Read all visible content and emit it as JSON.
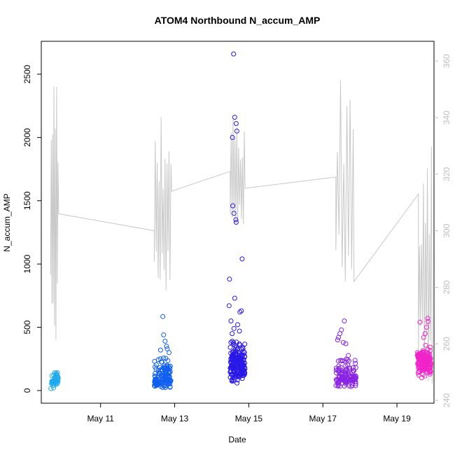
{
  "chart_data": {
    "type": "scatter",
    "title": "ATOM4 Northbound N_accum_AMP",
    "xlabel": "Date",
    "ylabel": "N_accum_AMP",
    "xlim": [
      9.4,
      20.0
    ],
    "ylim": [
      -100,
      2760
    ],
    "y2lim": [
      239,
      367
    ],
    "x_ticks": [
      {
        "value": 11,
        "label": "May 11"
      },
      {
        "value": 13,
        "label": "May 13"
      },
      {
        "value": 15,
        "label": "May 15"
      },
      {
        "value": 17,
        "label": "May 17"
      },
      {
        "value": 19,
        "label": "May 19"
      }
    ],
    "y_ticks": [
      0,
      500,
      1000,
      1500,
      2000,
      2500
    ],
    "y2_ticks": [
      240,
      260,
      280,
      300,
      320,
      340,
      360
    ],
    "colors": {
      "secondary_line": "#c8c8c8",
      "right_axis": "#bfbfbf",
      "axis": "#000000",
      "gradient": [
        "#00b4e6",
        "#0050ff",
        "#2800e6",
        "#8a1ee6",
        "#ff28c8"
      ]
    },
    "grid": false,
    "legend": "none",
    "series": [
      {
        "type": "scatter",
        "color": "#1ea9ee",
        "clusters": [
          {
            "x_range": [
              9.64,
              9.86
            ],
            "n": 40,
            "y_min": 5,
            "y_max": 150,
            "mode": 80
          }
        ],
        "outliers": [
          [
            9.76,
            140
          ],
          [
            9.82,
            120
          ]
        ]
      },
      {
        "type": "scatter",
        "color": "#1060f0",
        "clusters": [
          {
            "x_range": [
              12.45,
              12.9
            ],
            "n": 150,
            "y_min": 10,
            "y_max": 300,
            "mode": 90
          }
        ],
        "outliers": [
          [
            12.68,
            585
          ],
          [
            12.7,
            440
          ],
          [
            12.74,
            390
          ],
          [
            12.78,
            350
          ],
          [
            12.8,
            330
          ],
          [
            12.62,
            320
          ],
          [
            12.85,
            300
          ]
        ]
      },
      {
        "type": "scatter",
        "color": "#2a18e8",
        "clusters": [
          {
            "x_range": [
              14.5,
              14.9
            ],
            "n": 200,
            "y_min": 20,
            "y_max": 420,
            "mode": 200
          }
        ],
        "outliers": [
          [
            14.59,
            2660
          ],
          [
            14.62,
            2160
          ],
          [
            14.66,
            2110
          ],
          [
            14.68,
            2050
          ],
          [
            14.56,
            2000
          ],
          [
            14.57,
            1460
          ],
          [
            14.6,
            1400
          ],
          [
            14.65,
            1350
          ],
          [
            14.66,
            1330
          ],
          [
            14.82,
            1040
          ],
          [
            14.48,
            880
          ],
          [
            14.62,
            730
          ],
          [
            14.47,
            670
          ],
          [
            14.8,
            630
          ],
          [
            14.76,
            620
          ],
          [
            14.52,
            550
          ],
          [
            14.7,
            520
          ],
          [
            14.6,
            490
          ],
          [
            14.75,
            470
          ],
          [
            14.55,
            450
          ]
        ]
      },
      {
        "type": "scatter",
        "color": "#8a24e6",
        "clusters": [
          {
            "x_range": [
              17.35,
              17.9
            ],
            "n": 130,
            "y_min": 5,
            "y_max": 330,
            "mode": 100
          }
        ],
        "outliers": [
          [
            17.58,
            550
          ],
          [
            17.5,
            480
          ],
          [
            17.46,
            450
          ],
          [
            17.42,
            420
          ],
          [
            17.4,
            400
          ],
          [
            17.55,
            380
          ],
          [
            17.62,
            370
          ]
        ]
      },
      {
        "type": "scatter",
        "color": "#f024c8",
        "clusters": [
          {
            "x_range": [
              19.55,
              19.92
            ],
            "n": 150,
            "y_min": 60,
            "y_max": 370,
            "mode": 230
          }
        ],
        "outliers": [
          [
            19.83,
            570
          ],
          [
            19.84,
            545
          ],
          [
            19.62,
            540
          ],
          [
            19.8,
            500
          ],
          [
            19.76,
            450
          ],
          [
            19.72,
            420
          ]
        ]
      },
      {
        "type": "line",
        "axis": "right",
        "color": "#c8c8c8",
        "segments": [
          {
            "x_range": [
              9.65,
              9.85
            ],
            "y_min": 260,
            "y_max": 366,
            "n": 12,
            "end": 306
          },
          {
            "connect_to": [
              12.45,
              300
            ]
          },
          {
            "x_range": [
              12.45,
              12.9
            ],
            "y_min": 278,
            "y_max": 342,
            "n": 18,
            "end": 314
          },
          {
            "connect_to": [
              14.5,
              321
            ]
          },
          {
            "x_range": [
              14.5,
              14.88
            ],
            "y_min": 300,
            "y_max": 342,
            "n": 16,
            "end": 315
          },
          {
            "connect_to": [
              17.35,
              319
            ]
          },
          {
            "x_range": [
              17.35,
              17.82
            ],
            "y_min": 282,
            "y_max": 357,
            "n": 12,
            "end": 282
          },
          {
            "connect_to": [
              19.58,
              313
            ]
          },
          {
            "x_range": [
              19.58,
              19.93
            ],
            "y_min": 246,
            "y_max": 334,
            "n": 14,
            "end": 246
          }
        ]
      }
    ]
  }
}
